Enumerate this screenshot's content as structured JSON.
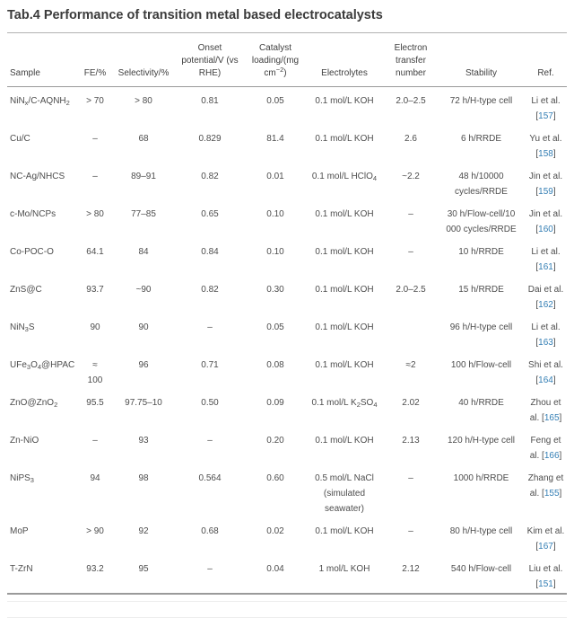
{
  "title": "Tab.4 Performance of transition metal based electrocatalysts",
  "colors": {
    "link_blue": "#337eb4",
    "body_text": "#4d4d4d",
    "title_text": "#3b3b3b",
    "rule_gray": "#9a9a9a"
  },
  "table": {
    "columns": [
      {
        "key": "sample",
        "label": [
          "Sample"
        ]
      },
      {
        "key": "fe",
        "label": [
          "FE/%"
        ]
      },
      {
        "key": "selectivity",
        "label": [
          "Selectivity/%"
        ]
      },
      {
        "key": "onset",
        "label": [
          "Onset potential/V (vs RHE)"
        ]
      },
      {
        "key": "loading",
        "label": [
          "Catalyst loading/(mg cm",
          {
            "p": "−2"
          },
          ")"
        ]
      },
      {
        "key": "electrolytes",
        "label": [
          "Electrolytes"
        ]
      },
      {
        "key": "etn",
        "label": [
          "Electron transfer number"
        ]
      },
      {
        "key": "stability",
        "label": [
          "Stability"
        ]
      },
      {
        "key": "ref",
        "label": [
          "Ref."
        ]
      }
    ],
    "rows": [
      {
        "sample": [
          "NiN",
          {
            "s": "x"
          },
          "/C-AQNH",
          {
            "s": "2"
          }
        ],
        "fe": "> 70",
        "selectivity": "> 80",
        "onset": "0.81",
        "loading": "0.05",
        "electrolytes": [
          "0.1 mol/L KOH"
        ],
        "etn": "2.0–2.5",
        "stability": "72 h/H-type cell",
        "ref": {
          "name": "Li et al.",
          "num": "157"
        }
      },
      {
        "sample": [
          "Cu/C"
        ],
        "fe": "–",
        "selectivity": "68",
        "onset": "0.829",
        "loading": "81.4",
        "electrolytes": [
          "0.1 mol/L KOH"
        ],
        "etn": "2.6",
        "stability": "6 h/RRDE",
        "ref": {
          "name": "Yu et al.",
          "num": "158"
        }
      },
      {
        "sample": [
          "NC-Ag/NHCS"
        ],
        "fe": "–",
        "selectivity": "89–91",
        "onset": "0.82",
        "loading": "0.01",
        "electrolytes": [
          "0.1 mol/L HClO",
          {
            "s": "4"
          }
        ],
        "etn": "~2.2",
        "stability": "48 h/10000 cycles/RRDE",
        "ref": {
          "name": "Jin et al.",
          "num": "159"
        }
      },
      {
        "sample": [
          "c-Mo/NCPs"
        ],
        "fe": "> 80",
        "selectivity": "77–85",
        "onset": "0.65",
        "loading": "0.10",
        "electrolytes": [
          "0.1 mol/L KOH"
        ],
        "etn": "–",
        "stability": "30 h/Flow-cell/10 000 cycles/RRDE",
        "ref": {
          "name": "Jin et al.",
          "num": "160"
        }
      },
      {
        "sample": [
          "Co-POC-O"
        ],
        "fe": "64.1",
        "selectivity": "84",
        "onset": "0.84",
        "loading": "0.10",
        "electrolytes": [
          "0.1 mol/L KOH"
        ],
        "etn": "–",
        "stability": "10 h/RRDE",
        "ref": {
          "name": "Li et al.",
          "num": "161"
        }
      },
      {
        "sample": [
          "ZnS@C"
        ],
        "fe": "93.7",
        "selectivity": "~90",
        "onset": "0.82",
        "loading": "0.30",
        "electrolytes": [
          "0.1 mol/L KOH"
        ],
        "etn": "2.0–2.5",
        "stability": "15 h/RRDE",
        "ref": {
          "name": "Dai et al.",
          "num": "162"
        }
      },
      {
        "sample": [
          "NiN",
          {
            "s": "3"
          },
          "S"
        ],
        "fe": "90",
        "selectivity": "90",
        "onset": "–",
        "loading": "0.05",
        "electrolytes": [
          "0.1 mol/L KOH"
        ],
        "etn": "",
        "stability": "96 h/H-type cell",
        "ref": {
          "name": "Li et al.",
          "num": "163"
        }
      },
      {
        "sample": [
          "UFe",
          {
            "s": "3"
          },
          "O",
          {
            "s": "4"
          },
          "@HPAC"
        ],
        "fe": "≈\n100",
        "selectivity": "96",
        "onset": "0.71",
        "loading": "0.08",
        "electrolytes": [
          "0.1 mol/L KOH"
        ],
        "etn": "≈2",
        "stability": "100 h/Flow-cell",
        "ref": {
          "name": "Shi et al.",
          "num": "164"
        }
      },
      {
        "sample": [
          "ZnO@ZnO",
          {
            "s": "2"
          }
        ],
        "fe": "95.5",
        "selectivity": "97.75–10",
        "onset": "0.50",
        "loading": "0.09",
        "electrolytes": [
          "0.1 mol/L K",
          {
            "s": "2"
          },
          "SO",
          {
            "s": "4"
          }
        ],
        "etn": "2.02",
        "stability": "40 h/RRDE",
        "ref": {
          "name": "Zhou et al.",
          "num": "165"
        }
      },
      {
        "sample": [
          "Zn-NiO"
        ],
        "fe": "–",
        "selectivity": "93",
        "onset": "–",
        "loading": "0.20",
        "electrolytes": [
          "0.1 mol/L KOH"
        ],
        "etn": "2.13",
        "stability": "120 h/H-type cell",
        "ref": {
          "name": "Feng et al.",
          "num": "166"
        }
      },
      {
        "sample": [
          "NiPS",
          {
            "s": "3"
          }
        ],
        "fe": "94",
        "selectivity": "98",
        "onset": "0.564",
        "loading": "0.60",
        "electrolytes": [
          "0.5 mol/L NaCl (simulated seawater)"
        ],
        "etn": "–",
        "stability": "1000 h/RRDE",
        "ref": {
          "name": "Zhang et al.",
          "num": "155"
        }
      },
      {
        "sample": [
          "MoP"
        ],
        "fe": "> 90",
        "selectivity": "92",
        "onset": "0.68",
        "loading": "0.02",
        "electrolytes": [
          "0.1 mol/L KOH"
        ],
        "etn": "–",
        "stability": "80 h/H-type cell",
        "ref": {
          "name": "Kim et al.",
          "num": "167"
        }
      },
      {
        "sample": [
          "T-ZrN"
        ],
        "fe": "93.2",
        "selectivity": "95",
        "onset": "–",
        "loading": "0.04",
        "electrolytes": [
          "1 mol/L KOH"
        ],
        "etn": "2.12",
        "stability": "540 h/Flow-cell",
        "ref": {
          "name": "Liu et al.",
          "num": "151"
        }
      }
    ]
  }
}
